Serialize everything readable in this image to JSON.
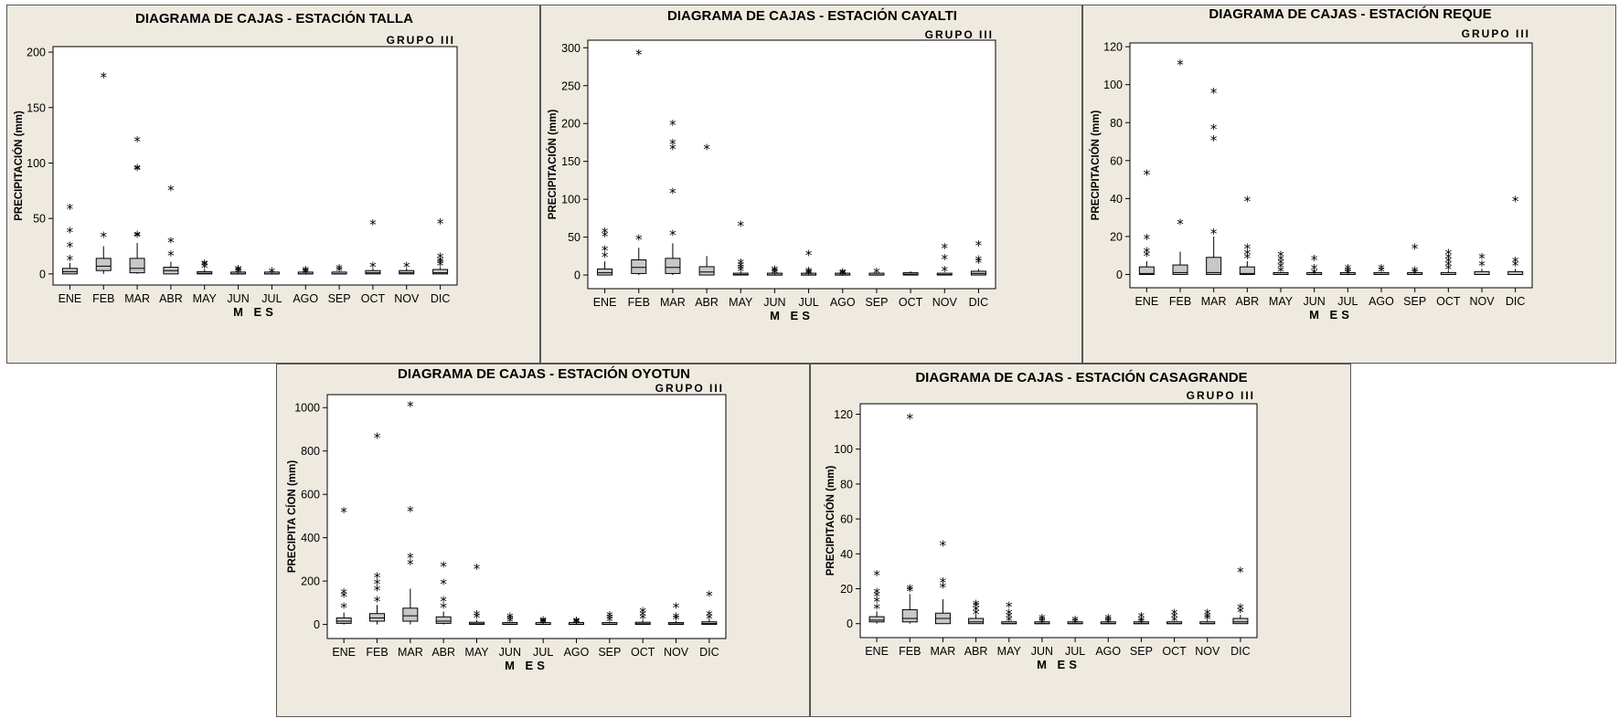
{
  "common": {
    "y_axis_label": "PRECIPITACIÓN (mm)",
    "x_axis_label": "M ES",
    "group_label": "GRUPO III"
  },
  "chart_data": [
    {
      "type": "box",
      "title": "DIAGRAMA DE CAJAS - ESTACIÓN TALLA",
      "subtitle": "GRUPO III",
      "xlabel": "M ES",
      "ylabel": "PRECIPITACIÓN (mm)",
      "categories": [
        "ENE",
        "FEB",
        "MAR",
        "ABR",
        "MAY",
        "JUN",
        "JUL",
        "AGO",
        "SEP",
        "OCT",
        "NOV",
        "DIC"
      ],
      "ylim": [
        -10,
        205
      ],
      "yticks": [
        0,
        50,
        100,
        150,
        200
      ],
      "boxes": [
        {
          "q1": 0,
          "median": 2,
          "q3": 5,
          "lo": 0,
          "hi": 10,
          "outliers": [
            13,
            25,
            38,
            59
          ]
        },
        {
          "q1": 3,
          "median": 7,
          "q3": 14,
          "lo": 0,
          "hi": 25,
          "outliers": [
            34,
            178
          ]
        },
        {
          "q1": 1,
          "median": 5,
          "q3": 14,
          "lo": 0,
          "hi": 28,
          "outliers": [
            34,
            35,
            94,
            95,
            120
          ]
        },
        {
          "q1": 0,
          "median": 3,
          "q3": 6,
          "lo": 0,
          "hi": 11,
          "outliers": [
            17,
            29,
            76
          ]
        },
        {
          "q1": 0,
          "median": 0.5,
          "q3": 2,
          "lo": 0,
          "hi": 4,
          "outliers": [
            6,
            8,
            9
          ]
        },
        {
          "q1": 0,
          "median": 0,
          "q3": 1,
          "lo": 0,
          "hi": 1.5,
          "outliers": [
            2,
            3,
            4
          ]
        },
        {
          "q1": 0,
          "median": 0,
          "q3": 0.5,
          "lo": 0,
          "hi": 1,
          "outliers": [
            2
          ]
        },
        {
          "q1": 0,
          "median": 0,
          "q3": 0.5,
          "lo": 0,
          "hi": 1,
          "outliers": [
            1.5,
            2,
            3
          ]
        },
        {
          "q1": 0,
          "median": 0,
          "q3": 0.8,
          "lo": 0,
          "hi": 1.5,
          "outliers": [
            3,
            5
          ]
        },
        {
          "q1": 0,
          "median": 1,
          "q3": 3,
          "lo": 0,
          "hi": 5,
          "outliers": [
            7,
            45
          ]
        },
        {
          "q1": 0,
          "median": 1,
          "q3": 3,
          "lo": 0,
          "hi": 5,
          "outliers": [
            7
          ]
        },
        {
          "q1": 0,
          "median": 1,
          "q3": 4,
          "lo": 0,
          "hi": 6,
          "outliers": [
            8,
            10,
            12,
            15,
            46
          ]
        }
      ]
    },
    {
      "type": "box",
      "title": "DIAGRAMA DE CAJAS - ESTACIÓN CAYALTI",
      "subtitle": "GRUPO III",
      "xlabel": "M ES",
      "ylabel": "PRECIPITACIÓN (mm)",
      "categories": [
        "ENE",
        "FEB",
        "MAR",
        "ABR",
        "MAY",
        "JUN",
        "JUL",
        "AGO",
        "SEP",
        "OCT",
        "NOV",
        "DIC"
      ],
      "ylim": [
        -18,
        310
      ],
      "yticks": [
        0,
        50,
        100,
        150,
        200,
        250,
        300
      ],
      "boxes": [
        {
          "q1": 0,
          "median": 3,
          "q3": 8,
          "lo": 0,
          "hi": 18,
          "outliers": [
            25,
            33,
            52,
            57
          ]
        },
        {
          "q1": 2,
          "median": 10,
          "q3": 20,
          "lo": 0,
          "hi": 36,
          "outliers": [
            48,
            292
          ]
        },
        {
          "q1": 2,
          "median": 10,
          "q3": 22,
          "lo": 0,
          "hi": 42,
          "outliers": [
            54,
            109,
            167,
            174,
            199
          ]
        },
        {
          "q1": 0,
          "median": 4,
          "q3": 11,
          "lo": 0,
          "hi": 25,
          "outliers": [
            167
          ]
        },
        {
          "q1": 0,
          "median": 0.5,
          "q3": 2,
          "lo": 0,
          "hi": 4,
          "outliers": [
            6,
            9,
            12,
            16,
            66
          ]
        },
        {
          "q1": 0,
          "median": 0,
          "q3": 1,
          "lo": 0,
          "hi": 2,
          "outliers": [
            3,
            5,
            7
          ]
        },
        {
          "q1": 0,
          "median": 0,
          "q3": 0.5,
          "lo": 0,
          "hi": 1,
          "outliers": [
            2,
            3,
            5,
            27
          ]
        },
        {
          "q1": 0,
          "median": 0,
          "q3": 0.5,
          "lo": 0,
          "hi": 1,
          "outliers": [
            1.5,
            2,
            3
          ]
        },
        {
          "q1": 0,
          "median": 0,
          "q3": 1,
          "lo": 0,
          "hi": 2,
          "outliers": [
            4
          ]
        },
        {
          "q1": 0,
          "median": 1,
          "q3": 3,
          "lo": 0,
          "hi": 5,
          "outliers": []
        },
        {
          "q1": 0,
          "median": 0.5,
          "q3": 2,
          "lo": 0,
          "hi": 3,
          "outliers": [
            6,
            22,
            36
          ]
        },
        {
          "q1": 0,
          "median": 2,
          "q3": 5,
          "lo": 0,
          "hi": 8,
          "outliers": [
            17,
            20,
            40
          ]
        }
      ]
    },
    {
      "type": "box",
      "title": "DIAGRAMA DE CAJAS - ESTACIÓN REQUE",
      "subtitle": "GRUPO III",
      "xlabel": "M ES",
      "ylabel": "PRECIPITACIÓN (mm)",
      "categories": [
        "ENE",
        "FEB",
        "MAR",
        "ABR",
        "MAY",
        "JUN",
        "JUL",
        "AGO",
        "SEP",
        "OCT",
        "NOV",
        "DIC"
      ],
      "ylim": [
        -7,
        122
      ],
      "yticks": [
        0,
        20,
        40,
        60,
        80,
        100,
        120
      ],
      "boxes": [
        {
          "q1": 0,
          "median": 0.5,
          "q3": 4,
          "lo": 0,
          "hi": 7,
          "outliers": [
            10,
            12,
            19,
            53
          ]
        },
        {
          "q1": 0,
          "median": 1,
          "q3": 5,
          "lo": 0,
          "hi": 12,
          "outliers": [
            27,
            111
          ]
        },
        {
          "q1": 0,
          "median": 1,
          "q3": 9,
          "lo": 0,
          "hi": 20,
          "outliers": [
            22,
            71,
            77,
            96
          ]
        },
        {
          "q1": 0,
          "median": 0.5,
          "q3": 4,
          "lo": 0,
          "hi": 7,
          "outliers": [
            9,
            11,
            14,
            39
          ]
        },
        {
          "q1": 0,
          "median": 0,
          "q3": 0.5,
          "lo": 0,
          "hi": 1,
          "outliers": [
            2,
            4,
            6,
            8,
            10
          ]
        },
        {
          "q1": 0,
          "median": 0,
          "q3": 0.3,
          "lo": 0,
          "hi": 0.5,
          "outliers": [
            1,
            3,
            8
          ]
        },
        {
          "q1": 0,
          "median": 0,
          "q3": 0.3,
          "lo": 0,
          "hi": 0.5,
          "outliers": [
            1,
            2,
            3
          ]
        },
        {
          "q1": 0,
          "median": 0,
          "q3": 0.3,
          "lo": 0,
          "hi": 0.5,
          "outliers": [
            2,
            3
          ]
        },
        {
          "q1": 0,
          "median": 0,
          "q3": 0.3,
          "lo": 0,
          "hi": 0.5,
          "outliers": [
            1,
            2,
            14
          ]
        },
        {
          "q1": 0,
          "median": 0,
          "q3": 1,
          "lo": 0,
          "hi": 2,
          "outliers": [
            3,
            5,
            7,
            9,
            11
          ]
        },
        {
          "q1": 0,
          "median": 0,
          "q3": 1.5,
          "lo": 0,
          "hi": 3,
          "outliers": [
            5,
            9
          ]
        },
        {
          "q1": 0,
          "median": 0,
          "q3": 1.5,
          "lo": 0,
          "hi": 3,
          "outliers": [
            5,
            7,
            39
          ]
        }
      ]
    },
    {
      "type": "box",
      "title": "DIAGRAMA DE CAJAS - ESTACIÓN OYOTUN",
      "subtitle": "GRUPO III",
      "xlabel": "M ES",
      "ylabel": "PRECIPITA CÍON (mm)",
      "categories": [
        "ENE",
        "FEB",
        "MAR",
        "ABR",
        "MAY",
        "JUN",
        "JUL",
        "AGO",
        "SEP",
        "OCT",
        "NOV",
        "DIC"
      ],
      "ylim": [
        -65,
        1060
      ],
      "yticks": [
        0,
        200,
        400,
        600,
        800,
        1000
      ],
      "boxes": [
        {
          "q1": 5,
          "median": 15,
          "q3": 30,
          "lo": 0,
          "hi": 55,
          "outliers": [
            80,
            130,
            145,
            520
          ]
        },
        {
          "q1": 15,
          "median": 30,
          "q3": 50,
          "lo": 0,
          "hi": 90,
          "outliers": [
            110,
            160,
            190,
            220,
            865
          ]
        },
        {
          "q1": 15,
          "median": 40,
          "q3": 75,
          "lo": 0,
          "hi": 165,
          "outliers": [
            280,
            310,
            525,
            1010
          ]
        },
        {
          "q1": 5,
          "median": 15,
          "q3": 35,
          "lo": 0,
          "hi": 60,
          "outliers": [
            80,
            110,
            190,
            270
          ]
        },
        {
          "q1": 0,
          "median": 3,
          "q3": 10,
          "lo": 0,
          "hi": 20,
          "outliers": [
            35,
            45,
            260
          ]
        },
        {
          "q1": 0,
          "median": 1,
          "q3": 4,
          "lo": 0,
          "hi": 8,
          "outliers": [
            15,
            25,
            35
          ]
        },
        {
          "q1": 0,
          "median": 0.5,
          "q3": 2,
          "lo": 0,
          "hi": 5,
          "outliers": [
            8,
            12,
            18
          ]
        },
        {
          "q1": 0,
          "median": 0.5,
          "q3": 2,
          "lo": 0,
          "hi": 4,
          "outliers": [
            8,
            12,
            16
          ]
        },
        {
          "q1": 0,
          "median": 1,
          "q3": 5,
          "lo": 0,
          "hi": 10,
          "outliers": [
            20,
            30,
            40
          ]
        },
        {
          "q1": 0,
          "median": 3,
          "q3": 10,
          "lo": 0,
          "hi": 20,
          "outliers": [
            30,
            45,
            60
          ]
        },
        {
          "q1": 0,
          "median": 2,
          "q3": 8,
          "lo": 0,
          "hi": 15,
          "outliers": [
            25,
            35,
            80
          ]
        },
        {
          "q1": 0,
          "median": 4,
          "q3": 12,
          "lo": 0,
          "hi": 25,
          "outliers": [
            30,
            45,
            135
          ]
        }
      ]
    },
    {
      "type": "box",
      "title": "DIAGRAMA DE CAJAS - ESTACIÓN CASAGRANDE",
      "subtitle": "GRUPO III",
      "xlabel": "M ES",
      "ylabel": "PRECIPITACIÓN (mm)",
      "categories": [
        "ENE",
        "FEB",
        "MAR",
        "ABR",
        "MAY",
        "JUN",
        "JUL",
        "AGO",
        "SEP",
        "OCT",
        "NOV",
        "DIC"
      ],
      "ylim": [
        -8,
        126
      ],
      "yticks": [
        0,
        20,
        40,
        60,
        80,
        100,
        120
      ],
      "boxes": [
        {
          "q1": 1,
          "median": 2,
          "q3": 4,
          "lo": 0,
          "hi": 7,
          "outliers": [
            9,
            13,
            16,
            18,
            28
          ]
        },
        {
          "q1": 1,
          "median": 3,
          "q3": 8,
          "lo": 0,
          "hi": 17,
          "outliers": [
            19,
            20,
            118
          ]
        },
        {
          "q1": 0,
          "median": 3,
          "q3": 6,
          "lo": 0,
          "hi": 14,
          "outliers": [
            21,
            24,
            45
          ]
        },
        {
          "q1": 0,
          "median": 1,
          "q3": 3,
          "lo": 0,
          "hi": 5,
          "outliers": [
            6,
            8,
            10,
            11
          ]
        },
        {
          "q1": 0,
          "median": 0,
          "q3": 0.5,
          "lo": 0,
          "hi": 1,
          "outliers": [
            2,
            4,
            6,
            10
          ]
        },
        {
          "q1": 0,
          "median": 0,
          "q3": 0.5,
          "lo": 0,
          "hi": 0.8,
          "outliers": [
            1,
            2,
            3
          ]
        },
        {
          "q1": 0,
          "median": 0,
          "q3": 0.3,
          "lo": 0,
          "hi": 0.5,
          "outliers": [
            1,
            2
          ]
        },
        {
          "q1": 0,
          "median": 0,
          "q3": 0.5,
          "lo": 0,
          "hi": 0.8,
          "outliers": [
            1,
            2,
            3
          ]
        },
        {
          "q1": 0,
          "median": 0,
          "q3": 0.5,
          "lo": 0,
          "hi": 0.8,
          "outliers": [
            1,
            2,
            4
          ]
        },
        {
          "q1": 0,
          "median": 0,
          "q3": 0.5,
          "lo": 0,
          "hi": 1,
          "outliers": [
            2,
            4,
            6
          ]
        },
        {
          "q1": 0,
          "median": 0,
          "q3": 1,
          "lo": 0,
          "hi": 2,
          "outliers": [
            3,
            4,
            6
          ]
        },
        {
          "q1": 0,
          "median": 1,
          "q3": 3,
          "lo": 0,
          "hi": 5,
          "outliers": [
            7,
            9,
            30
          ]
        }
      ]
    }
  ]
}
